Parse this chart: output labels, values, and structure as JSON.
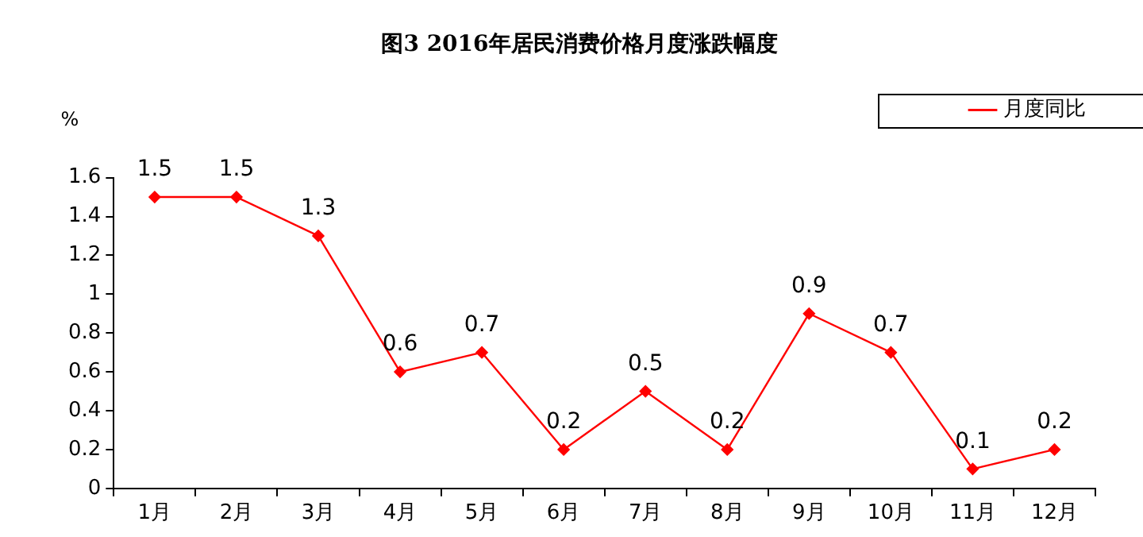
{
  "chart_data": {
    "type": "line",
    "title": "图3 2016年居民消费价格月度涨跌幅度",
    "ylabel": "%",
    "categories": [
      "1月",
      "2月",
      "3月",
      "4月",
      "5月",
      "6月",
      "7月",
      "8月",
      "9月",
      "10月",
      "11月",
      "12月"
    ],
    "series": [
      {
        "name": "月度同比",
        "color": "#ff0000",
        "values": [
          1.5,
          1.5,
          1.3,
          0.6,
          0.7,
          0.2,
          0.5,
          0.2,
          0.9,
          0.7,
          0.1,
          0.2
        ]
      }
    ],
    "ylim": [
      0,
      1.6
    ],
    "yticks": [
      0,
      0.2,
      0.4,
      0.6,
      0.8,
      1,
      1.2,
      1.4,
      1.6
    ],
    "legend": "top right",
    "marker": "diamond",
    "line_style": "solid",
    "data_labels": true
  }
}
